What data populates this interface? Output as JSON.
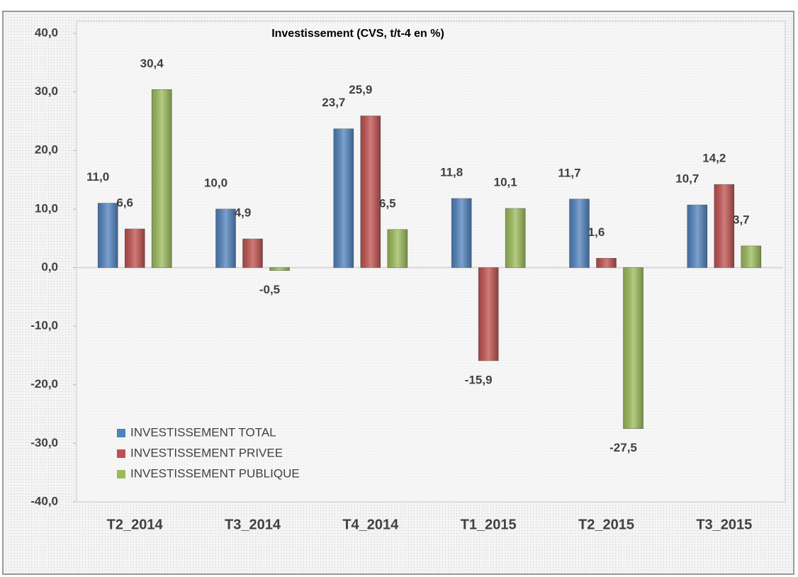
{
  "chart_data": {
    "type": "bar",
    "title": "Investissement (CVS, t/t-4 en %)",
    "categories": [
      "T2_2014",
      "T3_2014",
      "T4_2014",
      "T1_2015",
      "T2_2015",
      "T3_2015"
    ],
    "series": [
      {
        "name": "INVESTISSEMENT TOTAL",
        "color": "#4f81bd",
        "values": [
          11.0,
          10.0,
          23.7,
          11.8,
          11.7,
          10.7
        ],
        "value_labels": [
          "11,0",
          "10,0",
          "23,7",
          "11,8",
          "11,7",
          "10,7"
        ]
      },
      {
        "name": "INVESTISSEMENT PRIVEE",
        "color": "#c0504d",
        "values": [
          6.6,
          4.9,
          25.9,
          -15.9,
          1.6,
          14.2
        ],
        "value_labels": [
          "6,6",
          "4,9",
          "25,9",
          "-15,9",
          "1,6",
          "14,2"
        ]
      },
      {
        "name": "INVESTISSEMENT PUBLIQUE",
        "color": "#9bbb59",
        "values": [
          30.4,
          -0.5,
          6.5,
          10.1,
          -27.5,
          3.7
        ],
        "value_labels": [
          "30,4",
          "-0,5",
          "6,5",
          "10,1",
          "-27,5",
          "3,7"
        ]
      }
    ],
    "ylim": [
      -40,
      40
    ],
    "yticks": [
      {
        "value": -40,
        "label": "-40,0"
      },
      {
        "value": -30,
        "label": "-30,0"
      },
      {
        "value": -20,
        "label": "-20,0"
      },
      {
        "value": -10,
        "label": "-10,0"
      },
      {
        "value": 0,
        "label": "0,0"
      },
      {
        "value": 10,
        "label": "10,0"
      },
      {
        "value": 20,
        "label": "20,0"
      },
      {
        "value": 30,
        "label": "30,0"
      },
      {
        "value": 40,
        "label": "40,0"
      }
    ],
    "legend": "lower left"
  }
}
